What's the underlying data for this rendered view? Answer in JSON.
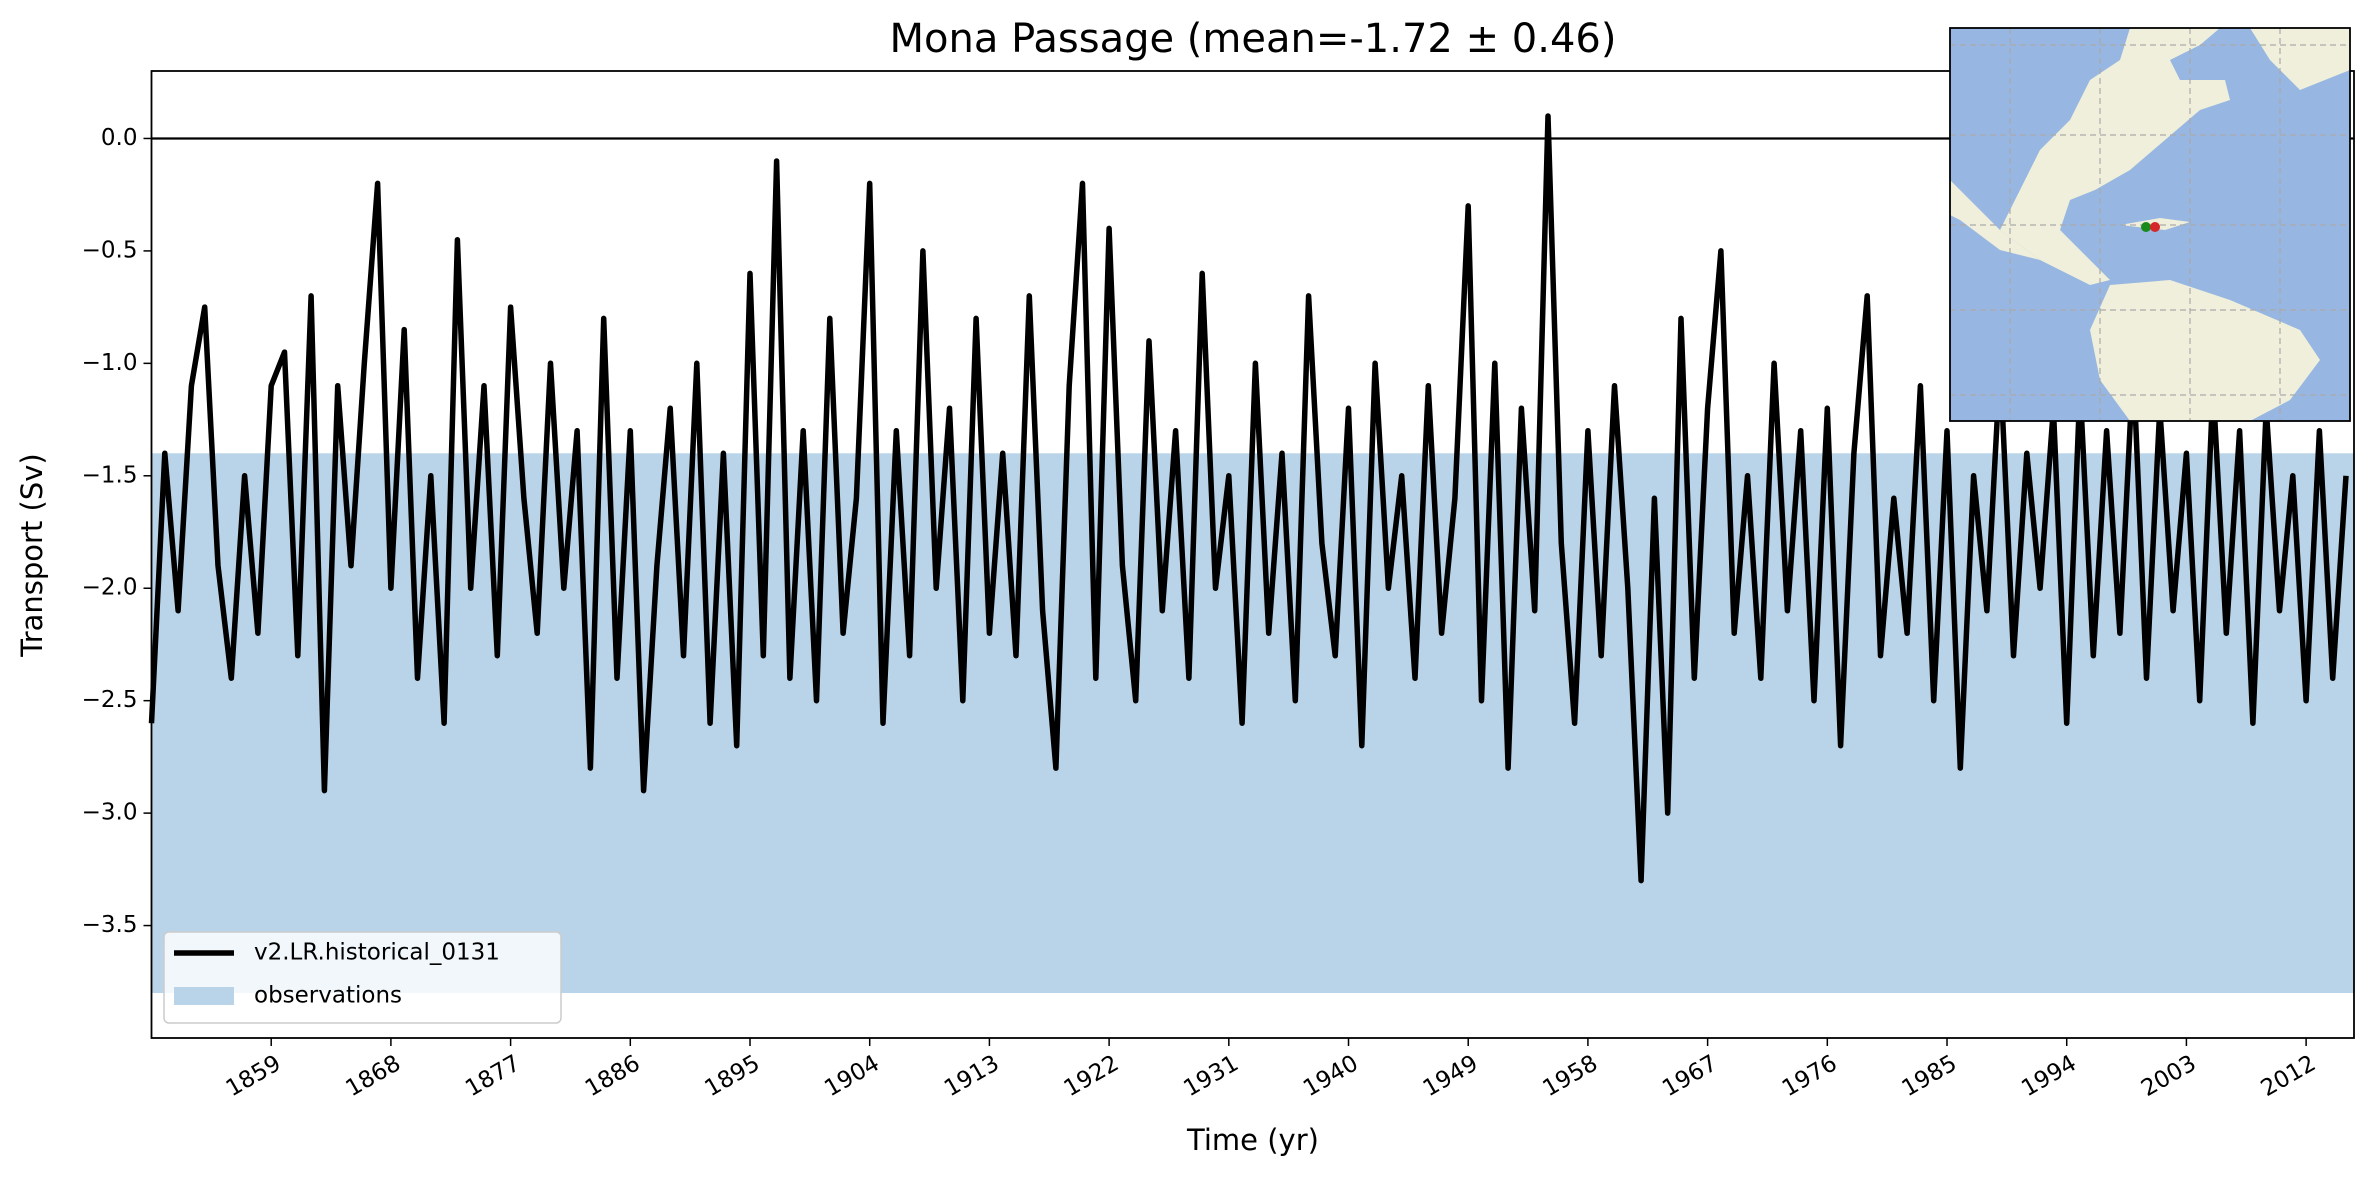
{
  "chart_data": {
    "type": "line",
    "title": "Mona Passage (mean=-1.72 ± 0.46)",
    "x_label": "Time (yr)",
    "y_label": "Transport (Sv)",
    "x": [
      1850,
      1851,
      1852,
      1853,
      1854,
      1855,
      1856,
      1857,
      1858,
      1859,
      1860,
      1861,
      1862,
      1863,
      1864,
      1865,
      1866,
      1867,
      1868,
      1869,
      1870,
      1871,
      1872,
      1873,
      1874,
      1875,
      1876,
      1877,
      1878,
      1879,
      1880,
      1881,
      1882,
      1883,
      1884,
      1885,
      1886,
      1887,
      1888,
      1889,
      1890,
      1891,
      1892,
      1893,
      1894,
      1895,
      1896,
      1897,
      1898,
      1899,
      1900,
      1901,
      1902,
      1903,
      1904,
      1905,
      1906,
      1907,
      1908,
      1909,
      1910,
      1911,
      1912,
      1913,
      1914,
      1915,
      1916,
      1917,
      1918,
      1919,
      1920,
      1921,
      1922,
      1923,
      1924,
      1925,
      1926,
      1927,
      1928,
      1929,
      1930,
      1931,
      1932,
      1933,
      1934,
      1935,
      1936,
      1937,
      1938,
      1939,
      1940,
      1941,
      1942,
      1943,
      1944,
      1945,
      1946,
      1947,
      1948,
      1949,
      1950,
      1951,
      1952,
      1953,
      1954,
      1955,
      1956,
      1957,
      1958,
      1959,
      1960,
      1961,
      1962,
      1963,
      1964,
      1965,
      1966,
      1967,
      1968,
      1969,
      1970,
      1971,
      1972,
      1973,
      1974,
      1975,
      1976,
      1977,
      1978,
      1979,
      1980,
      1981,
      1982,
      1983,
      1984,
      1985,
      1986,
      1987,
      1988,
      1989,
      1990,
      1991,
      1992,
      1993,
      1994,
      1995,
      1996,
      1997,
      1998,
      1999,
      2000,
      2001,
      2002,
      2003,
      2004,
      2005,
      2006,
      2007,
      2008,
      2009,
      2010,
      2011,
      2012,
      2013,
      2014,
      2015
    ],
    "series": [
      {
        "name": "v2.LR.historical_0131",
        "color": "#000000",
        "values": [
          -2.6,
          -1.4,
          -2.1,
          -1.1,
          -0.75,
          -1.9,
          -2.4,
          -1.5,
          -2.2,
          -1.1,
          -0.95,
          -2.3,
          -0.7,
          -2.9,
          -1.1,
          -1.9,
          -1.0,
          -0.2,
          -2.0,
          -0.85,
          -2.4,
          -1.5,
          -2.6,
          -0.45,
          -2.0,
          -1.1,
          -2.3,
          -0.75,
          -1.6,
          -2.2,
          -1.0,
          -2.0,
          -1.3,
          -2.8,
          -0.8,
          -2.4,
          -1.3,
          -2.9,
          -1.9,
          -1.2,
          -2.3,
          -1.0,
          -2.6,
          -1.4,
          -2.7,
          -0.6,
          -2.3,
          -0.1,
          -2.4,
          -1.3,
          -2.5,
          -0.8,
          -2.2,
          -1.6,
          -0.2,
          -2.6,
          -1.3,
          -2.3,
          -0.5,
          -2.0,
          -1.2,
          -2.5,
          -0.8,
          -2.2,
          -1.4,
          -2.3,
          -0.7,
          -2.1,
          -2.8,
          -1.1,
          -0.2,
          -2.4,
          -0.4,
          -1.9,
          -2.5,
          -0.9,
          -2.1,
          -1.3,
          -2.4,
          -0.6,
          -2.0,
          -1.5,
          -2.6,
          -1.0,
          -2.2,
          -1.4,
          -2.5,
          -0.7,
          -1.8,
          -2.3,
          -1.2,
          -2.7,
          -1.0,
          -2.0,
          -1.5,
          -2.4,
          -1.1,
          -2.2,
          -1.6,
          -0.3,
          -2.5,
          -1.0,
          -2.8,
          -1.2,
          -2.1,
          0.1,
          -1.8,
          -2.6,
          -1.3,
          -2.3,
          -1.1,
          -2.0,
          -3.3,
          -1.6,
          -3.0,
          -0.8,
          -2.4,
          -1.2,
          -0.5,
          -2.2,
          -1.5,
          -2.4,
          -1.0,
          -2.1,
          -1.3,
          -2.5,
          -1.2,
          -2.7,
          -1.4,
          -0.7,
          -2.3,
          -1.6,
          -2.2,
          -1.1,
          -2.5,
          -1.3,
          -2.8,
          -1.5,
          -2.1,
          -1.0,
          -2.3,
          -1.4,
          -2.0,
          -1.2,
          -2.6,
          -1.1,
          -2.3,
          -1.3,
          -2.2,
          -1.0,
          -2.4,
          -1.2,
          -2.1,
          -1.4,
          -2.5,
          -1.1,
          -2.2,
          -1.3,
          -2.6,
          -1.2,
          -2.1,
          -1.5,
          -2.5,
          -1.3,
          -2.4,
          -1.5
        ]
      }
    ],
    "observations": {
      "name": "observations",
      "color": "#b9d4e8",
      "range": [
        -3.8,
        -1.4
      ]
    },
    "reference_line": 0,
    "xlim": [
      1850,
      2015.6
    ],
    "ylim": [
      -4.0,
      0.3
    ],
    "xticks": [
      1859,
      1868,
      1877,
      1886,
      1895,
      1904,
      1913,
      1922,
      1931,
      1940,
      1949,
      1958,
      1967,
      1976,
      1985,
      1994,
      2003,
      2012
    ],
    "yticks": [
      {
        "value": 0,
        "label": "0.0"
      },
      {
        "value": -0.5,
        "label": "−0.5"
      },
      {
        "value": -1.0,
        "label": "−1.0"
      },
      {
        "value": -1.5,
        "label": "−1.5"
      },
      {
        "value": -2.0,
        "label": "−2.0"
      },
      {
        "value": -2.5,
        "label": "−2.5"
      },
      {
        "value": -3.0,
        "label": "−3.0"
      },
      {
        "value": -3.5,
        "label": "−3.5"
      }
    ],
    "legend": "lower left"
  }
}
